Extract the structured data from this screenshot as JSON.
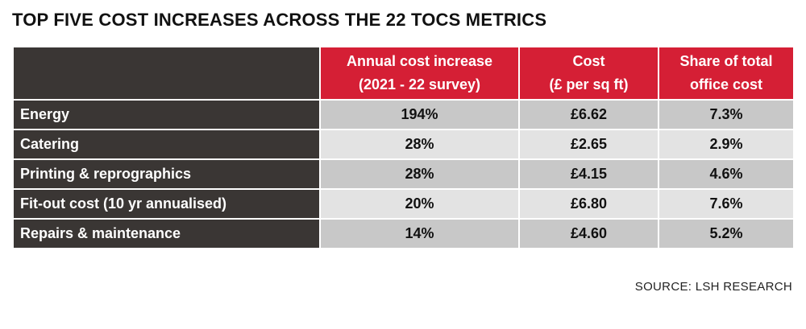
{
  "title": "TOP FIVE COST INCREASES ACROSS THE 22 TOCS METRICS",
  "header": {
    "col1_line1": "Annual cost increase",
    "col1_line2": "(2021 - 22 survey)",
    "col2_line1": "Cost",
    "col2_line2": "(£ per sq ft)",
    "col3_line1": "Share of total",
    "col3_line2": "office cost"
  },
  "rows": [
    {
      "label": "Energy",
      "increase": "194%",
      "cost": "£6.62",
      "share": "7.3%"
    },
    {
      "label": "Catering",
      "increase": "28%",
      "cost": "£2.65",
      "share": "2.9%"
    },
    {
      "label": "Printing & reprographics",
      "increase": "28%",
      "cost": "£4.15",
      "share": "4.6%"
    },
    {
      "label": "Fit-out cost (10 yr annualised)",
      "increase": "20%",
      "cost": "£6.80",
      "share": "7.6%"
    },
    {
      "label": "Repairs & maintenance",
      "increase": "14%",
      "cost": "£4.60",
      "share": "5.2%"
    }
  ],
  "source": "SOURCE: LSH RESEARCH",
  "colors": {
    "header_red": "#d51f35",
    "label_dark": "#3a3634",
    "row_odd": "#c8c8c8",
    "row_even": "#e3e3e3"
  }
}
